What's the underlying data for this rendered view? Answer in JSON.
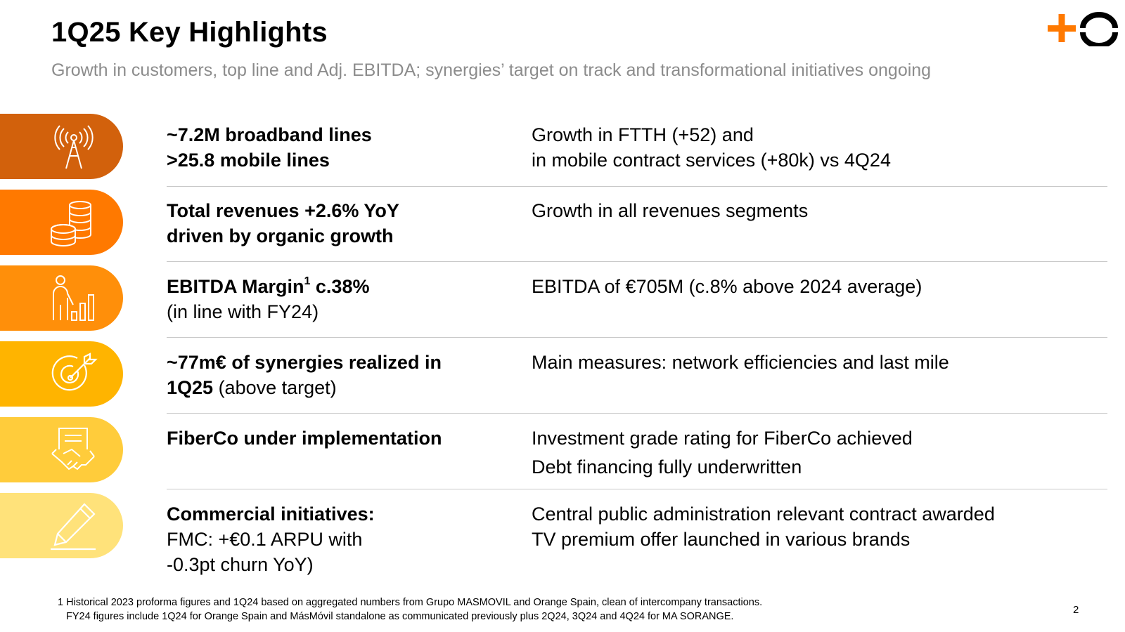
{
  "header": {
    "title": "1Q25 Key Highlights",
    "subtitle": "Growth in customers, top line and Adj. EBITDA; synergies’ target on track and transformational initiatives ongoing"
  },
  "colors": {
    "row1": "#D2610C",
    "row2": "#FF7900",
    "row3": "#FF8F0A",
    "row4": "#FFB400",
    "row5": "#FFCC3B",
    "row6": "#FFE27A",
    "logo_plus": "#FF7900",
    "logo_ring": "#000000"
  },
  "rows": [
    {
      "icon": "antenna-icon",
      "left_bold": "~7.2M broadband lines",
      "left_bold2": ">25.8 mobile lines",
      "right1": "Growth in FTTH (+52) and",
      "right2": "in mobile contract services (+80k) vs 4Q24"
    },
    {
      "icon": "coins-icon",
      "left_bold": "Total revenues +2.6% YoY",
      "left_bold2": "driven by organic growth",
      "right1": "Growth in all revenues segments"
    },
    {
      "icon": "person-chart-icon",
      "left_bold": "EBITDA Margin",
      "left_sup": "1",
      "left_bold_after": " c.38%",
      "left_plain": "(in line with FY24)",
      "right1": "EBITDA of €705M (c.8% above 2024 average)"
    },
    {
      "icon": "target-icon",
      "left_bold": "~77m€ of synergies realized in",
      "left_bold2": "1Q25",
      "left_plain": " (above target)",
      "right1": "Main measures: network efficiencies and last mile"
    },
    {
      "icon": "handshake-document-icon",
      "left_bold": "FiberCo under implementation",
      "right1": "Investment grade rating for FiberCo achieved",
      "right2": "Debt financing fully underwritten"
    },
    {
      "icon": "pencil-icon",
      "left_bold": "Commercial initiatives:",
      "left_plain": "FMC: +€0.1 ARPU with",
      "left_plain2": "-0.3pt churn YoY)",
      "right1": "Central public administration relevant contract awarded",
      "right2": "TV premium offer launched in various brands"
    }
  ],
  "footnote": {
    "line1": "1 Historical 2023 proforma figures and 1Q24 based on aggregated numbers from Grupo MASMOVIL and Orange Spain, clean of intercompany transactions.",
    "line2": "FY24 figures include 1Q24 for Orange Spain and MásMóvil standalone as communicated previously plus 2Q24, 3Q24 and 4Q24 for MA SORANGE."
  },
  "page_number": "2"
}
